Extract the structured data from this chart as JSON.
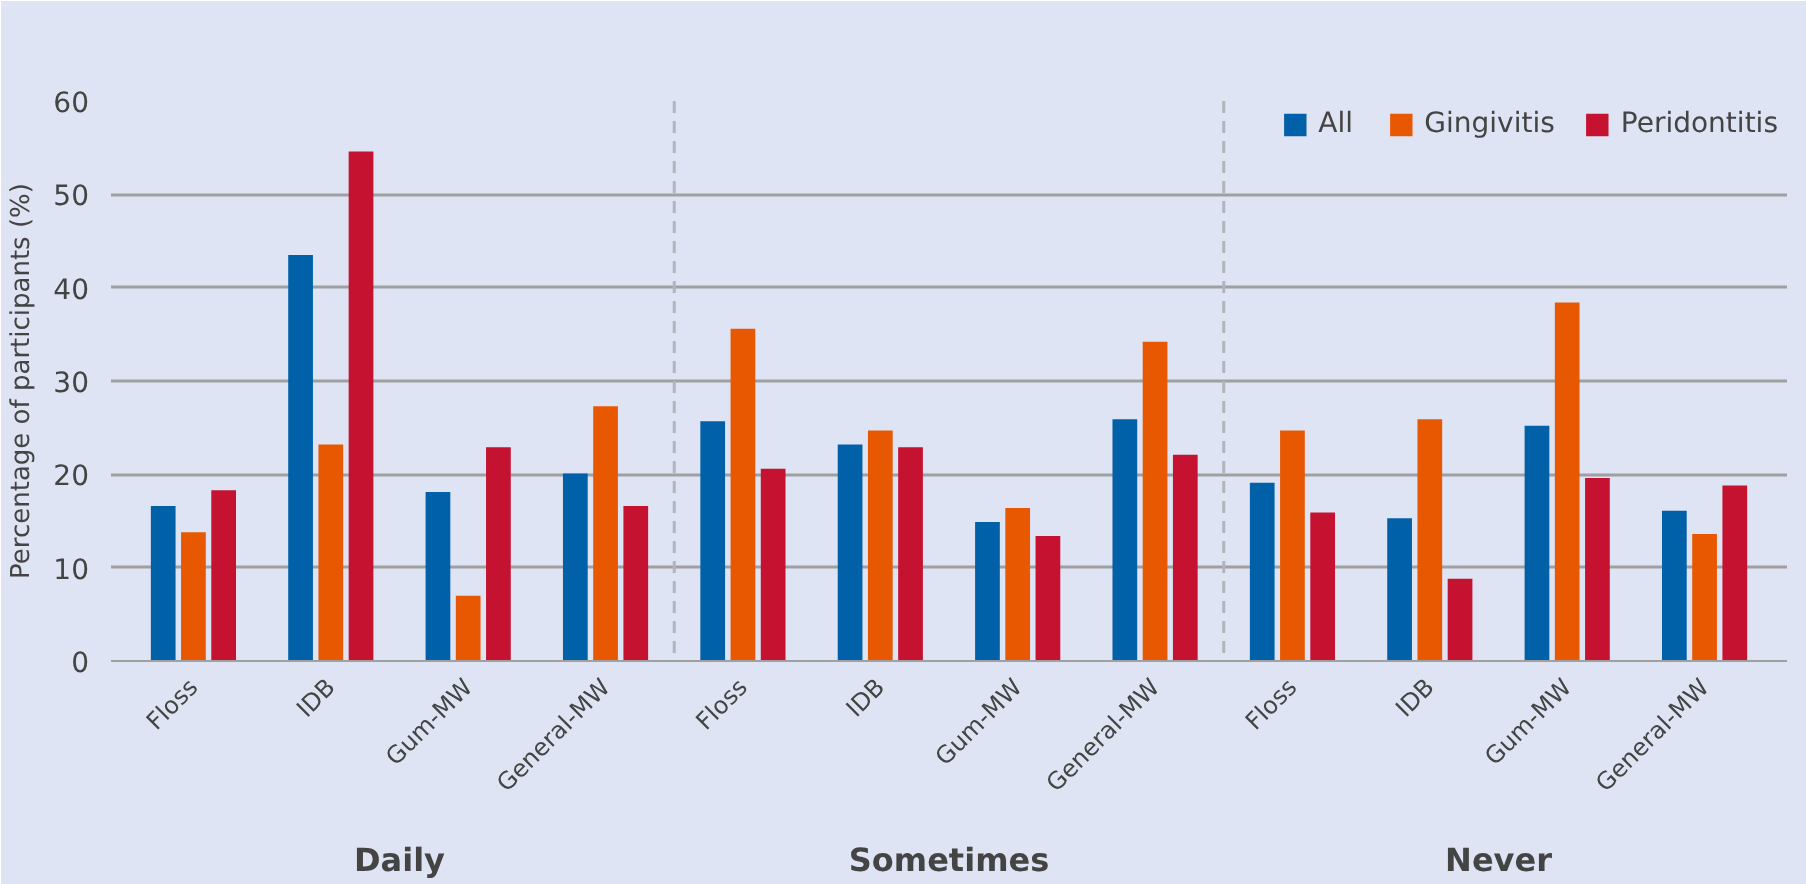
{
  "chart_data": {
    "type": "bar",
    "ylabel": "Percentage of participants (%)",
    "categories": [
      "Floss",
      "IDB",
      "Gum-MW",
      "General-MW",
      "Floss",
      "IDB",
      "Gum-MW",
      "General-MW",
      "Floss",
      "IDB",
      "Gum-MW",
      "General-MW"
    ],
    "series": [
      {
        "name": "All",
        "color": "#0060a8",
        "values": [
          16.6,
          43.5,
          18.1,
          20.1,
          25.7,
          23.2,
          14.9,
          25.9,
          19.1,
          15.3,
          25.2,
          16.1
        ]
      },
      {
        "name": "Gingivitis",
        "color": "#e85800",
        "values": [
          13.8,
          23.2,
          7.0,
          27.3,
          35.6,
          24.7,
          16.4,
          34.2,
          24.7,
          25.9,
          38.4,
          13.6
        ]
      },
      {
        "name": "Peridontitis",
        "color": "#c41230",
        "values": [
          18.3,
          54.6,
          22.9,
          16.6,
          20.6,
          22.9,
          13.4,
          22.1,
          15.9,
          8.8,
          19.6,
          18.8
        ]
      }
    ],
    "annotations": [
      "Daily",
      "Sometimes",
      "Never"
    ],
    "ylim": [
      0,
      60
    ],
    "yticks": [
      0,
      10,
      20,
      30,
      40,
      50,
      60
    ],
    "grid": "y",
    "legend": "top right"
  }
}
